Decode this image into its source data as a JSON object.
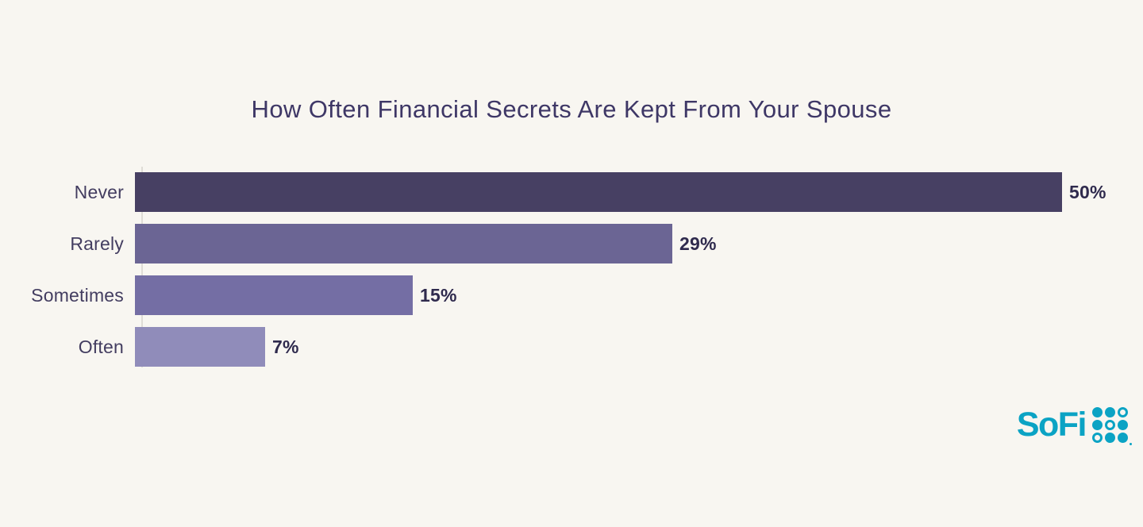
{
  "chart_data": {
    "type": "bar",
    "orientation": "horizontal",
    "title": "How Often Financial Secrets Are Kept From Your Spouse",
    "categories": [
      "Never",
      "Rarely",
      "Sometimes",
      "Often"
    ],
    "values": [
      50,
      29,
      15,
      7
    ],
    "value_labels": [
      "50%",
      "29%",
      "15%",
      "7%"
    ],
    "xlim": [
      0,
      50
    ],
    "bar_colors": [
      "#474063",
      "#6B6594",
      "#746EA4",
      "#908CBA"
    ],
    "grid": false,
    "legend": false,
    "xlabel": "",
    "ylabel": ""
  },
  "branding": {
    "logo_text": "SoFi",
    "logo_color": "#0BA3C4",
    "dot_pattern": [
      [
        "filled",
        "filled",
        "ring"
      ],
      [
        "filled",
        "ring",
        "filled"
      ],
      [
        "ring",
        "filled",
        "filled"
      ]
    ]
  },
  "colors": {
    "background": "#F8F6F1",
    "title_text": "#3E3766",
    "category_label": "#433D60",
    "value_label": "#2F2A4D",
    "axis_line": "#DFDCD6"
  }
}
